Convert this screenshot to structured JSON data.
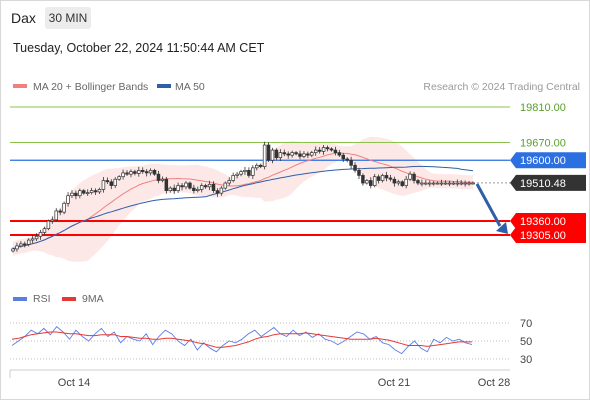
{
  "header": {
    "symbol": "Dax",
    "interval": "30 MIN",
    "datetime": "Tuesday, October 22, 2024 11:50:44 AM CET"
  },
  "legend": {
    "ma20": "MA 20 + Bollinger Bands",
    "ma50": "MA 50",
    "source": "Research © 2024 Trading Central"
  },
  "colors": {
    "ma20": "#f08080",
    "ma50": "#2e5fa8",
    "bands": "#fde4e4",
    "resistance": "#8bc34a",
    "pivot": "#2b6fe0",
    "support": "#ff0000",
    "current": "#333333",
    "arrow": "#2e5fa8",
    "rsi": "#5b7ee5",
    "rsi_ma": "#e53935"
  },
  "levels": [
    {
      "value": 19810,
      "label": "19810.00",
      "kind": "resistance"
    },
    {
      "value": 19670,
      "label": "19670.00",
      "kind": "resistance"
    },
    {
      "value": 19600,
      "label": "19600.00",
      "kind": "pivot"
    },
    {
      "value": 19510.48,
      "label": "19510.48",
      "kind": "current"
    },
    {
      "value": 19360,
      "label": "19360.00",
      "kind": "support"
    },
    {
      "value": 19305,
      "label": "19305.00",
      "kind": "support"
    }
  ],
  "xaxis": {
    "labels": [
      "Oct 14",
      "Oct 21",
      "Oct 28"
    ]
  },
  "rsi_panel": {
    "legend_rsi": "RSI",
    "legend_ma": "9MA",
    "ticks": [
      "70",
      "50",
      "30"
    ],
    "levels": [
      70,
      50,
      30
    ]
  },
  "chart_data": {
    "type": "candlestick",
    "ylim": [
      19200,
      19850
    ],
    "candle_count": 118,
    "close": [
      19250,
      19262,
      19270,
      19268,
      19285,
      19290,
      19300,
      19315,
      19330,
      19360,
      19365,
      19400,
      19395,
      19430,
      19460,
      19470,
      19460,
      19480,
      19470,
      19472,
      19480,
      19475,
      19485,
      19520,
      19515,
      19500,
      19525,
      19535,
      19550,
      19545,
      19555,
      19548,
      19560,
      19555,
      19550,
      19560,
      19545,
      19520,
      19525,
      19480,
      19490,
      19480,
      19500,
      19495,
      19510,
      19490,
      19480,
      19485,
      19500,
      19495,
      19505,
      19480,
      19470,
      19490,
      19510,
      19520,
      19540,
      19545,
      19555,
      19560,
      19540,
      19570,
      19580,
      19575,
      19660,
      19600,
      19640,
      19610,
      19630,
      19625,
      19620,
      19630,
      19625,
      19615,
      19625,
      19620,
      19630,
      19640,
      19635,
      19650,
      19645,
      19640,
      19630,
      19620,
      19605,
      19600,
      19580,
      19560,
      19540,
      19510,
      19520,
      19500,
      19535,
      19520,
      19540,
      19530,
      19525,
      19510,
      19515,
      19500,
      19525,
      19545,
      19520,
      19510,
      19510,
      19510,
      19510,
      19510,
      19510,
      19510,
      19510,
      19510,
      19510,
      19510,
      19510,
      19510,
      19510,
      19510
    ],
    "ma50_end": 19575,
    "rsi_values": [
      45,
      50,
      55,
      62,
      58,
      64,
      57,
      66,
      60,
      52,
      62,
      55,
      50,
      58,
      64,
      55,
      60,
      48,
      55,
      52,
      50,
      58,
      46,
      55,
      62,
      58,
      50,
      45,
      52,
      40,
      48,
      42,
      38,
      45,
      50,
      48,
      52,
      58,
      62,
      55,
      60,
      65,
      58,
      55,
      62,
      56,
      60,
      54,
      58,
      52,
      50,
      46,
      50,
      55,
      60,
      58,
      52,
      55,
      48,
      46,
      40,
      36,
      44,
      50,
      42,
      38,
      52,
      48,
      54,
      50,
      52,
      48,
      46
    ],
    "rsi_ma_values": [
      52,
      53,
      55,
      57,
      58,
      59,
      60,
      60,
      59,
      58,
      58,
      57,
      56,
      56,
      57,
      57,
      57,
      55,
      55,
      54,
      53,
      53,
      52,
      52,
      53,
      53,
      52,
      51,
      50,
      48,
      47,
      45,
      43,
      43,
      44,
      45,
      47,
      49,
      52,
      54,
      55,
      57,
      58,
      58,
      58,
      58,
      59,
      58,
      57,
      56,
      55,
      54,
      53,
      52,
      52,
      52,
      52,
      53,
      52,
      51,
      49,
      47,
      45,
      45,
      45,
      44,
      45,
      46,
      47,
      48,
      49,
      49,
      49
    ]
  }
}
